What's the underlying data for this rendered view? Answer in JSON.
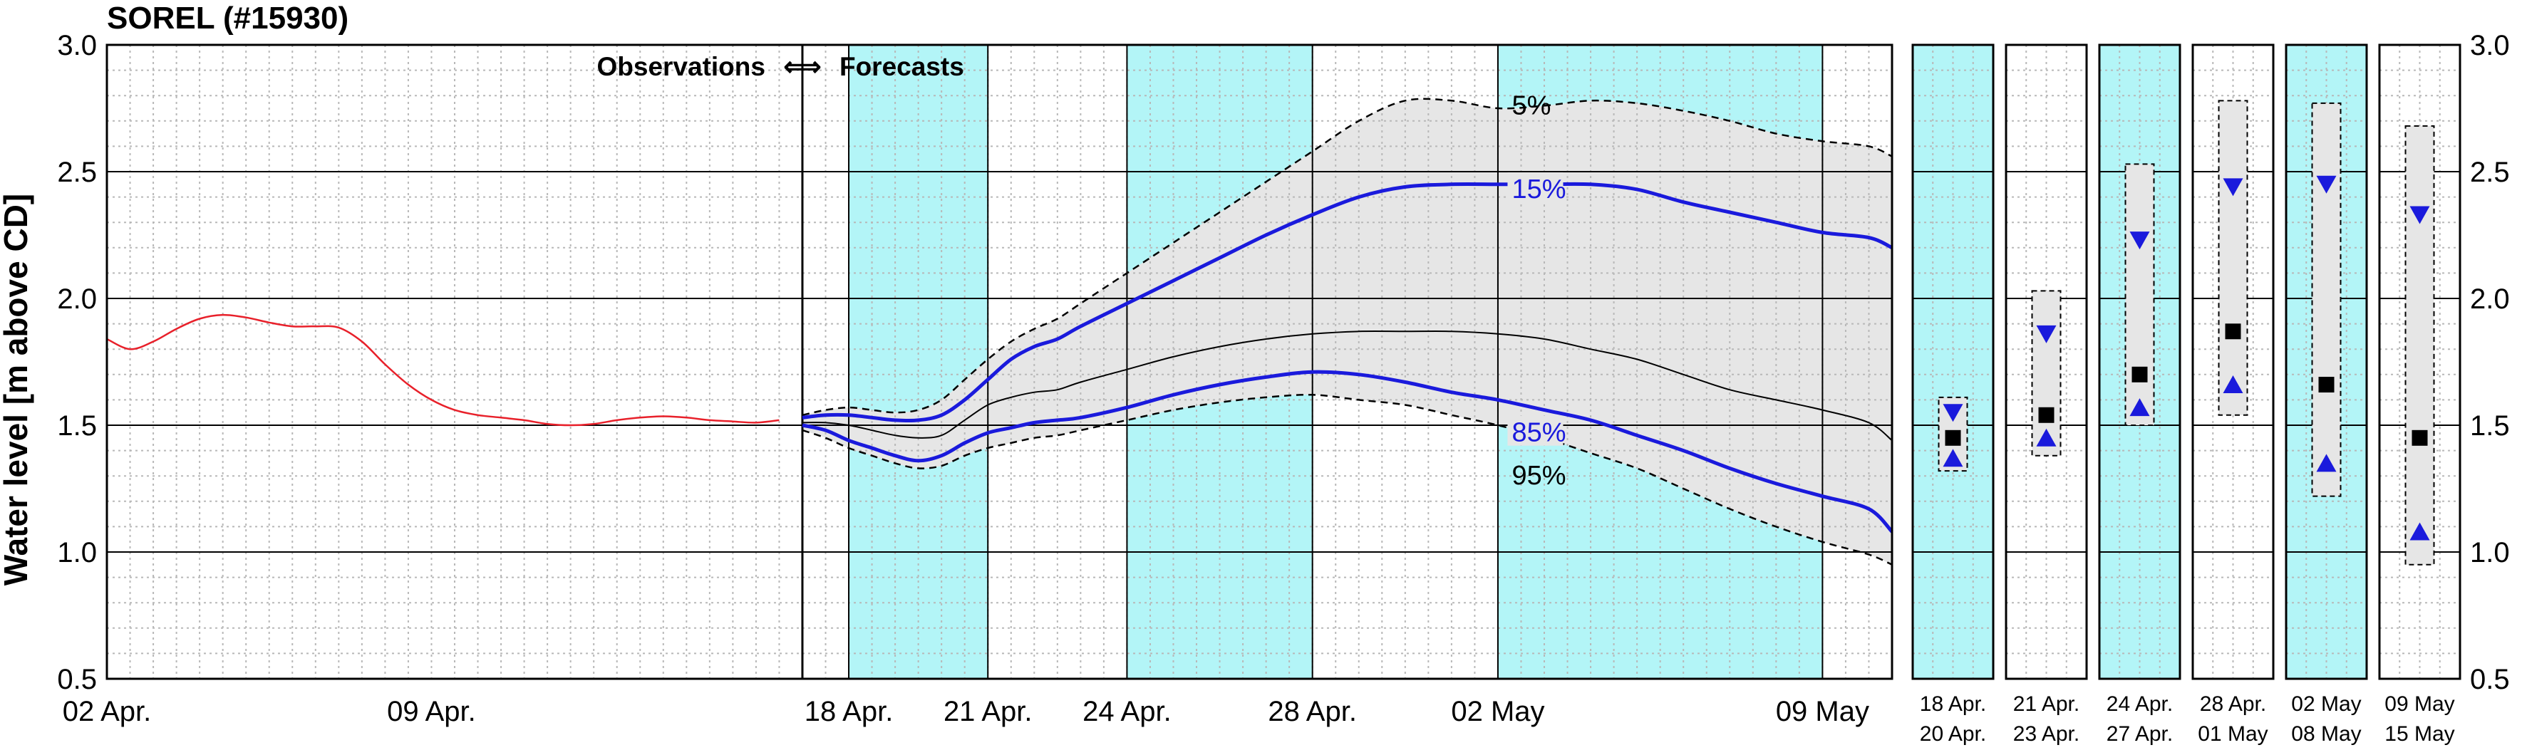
{
  "title": "SOREL (#15930)",
  "ylabel": "Water level [m above CD]",
  "annotation_observations": "Observations",
  "annotation_forecasts": "Forecasts",
  "annotation_arrow": "⟺",
  "colors": {
    "observed": "#e8202a",
    "band15_85": "#1a1adc",
    "median": "#000000",
    "envelope_fill": "#e6e6e6",
    "shade": "#b3f5f7",
    "square": "#000000",
    "triangle": "#1a1adc"
  },
  "chart_data": [
    {
      "type": "line",
      "title": "SOREL (#15930)",
      "ylabel": "Water level [m above CD]",
      "ylim": [
        0.5,
        3.0
      ],
      "yticks": [
        "0.5",
        "1.0",
        "1.5",
        "2.0",
        "2.5",
        "3.0"
      ],
      "grid": true,
      "xlim_days": [
        0,
        38.5
      ],
      "xtick_labels": [
        {
          "day": 0,
          "label": "02 Apr."
        },
        {
          "day": 7,
          "label": "09 Apr."
        },
        {
          "day": 16,
          "label": "18 Apr."
        },
        {
          "day": 19,
          "label": "21 Apr."
        },
        {
          "day": 22,
          "label": "24 Apr."
        },
        {
          "day": 26,
          "label": "28 Apr."
        },
        {
          "day": 30,
          "label": "02 May"
        },
        {
          "day": 37,
          "label": "09 May"
        }
      ],
      "forecast_start_day": 15,
      "shaded_periods_days": [
        [
          16,
          19
        ],
        [
          22,
          26
        ],
        [
          30,
          37
        ]
      ],
      "series": [
        {
          "name": "Observations",
          "x_days": [
            0,
            0.5,
            1,
            1.5,
            2,
            2.5,
            3,
            3.5,
            4,
            4.5,
            5,
            5.5,
            6,
            6.5,
            7,
            7.5,
            8,
            8.5,
            9,
            9.5,
            10,
            10.5,
            11,
            11.5,
            12,
            12.5,
            13,
            13.5,
            14,
            14.5
          ],
          "values": [
            1.84,
            1.8,
            1.83,
            1.88,
            1.92,
            1.935,
            1.925,
            1.905,
            1.89,
            1.89,
            1.885,
            1.83,
            1.74,
            1.66,
            1.6,
            1.56,
            1.54,
            1.53,
            1.52,
            1.505,
            1.5,
            1.505,
            1.52,
            1.53,
            1.535,
            1.53,
            1.52,
            1.515,
            1.51,
            1.52
          ]
        },
        {
          "name": "5%",
          "x_days": [
            15,
            15.5,
            16,
            16.5,
            17,
            17.5,
            18,
            18.5,
            19,
            19.5,
            20,
            20.5,
            21,
            22,
            23,
            24,
            25,
            26,
            27,
            28,
            29,
            30,
            31,
            32,
            33,
            34,
            35,
            36,
            37,
            38,
            38.5
          ],
          "values": [
            1.54,
            1.56,
            1.57,
            1.56,
            1.55,
            1.56,
            1.6,
            1.68,
            1.76,
            1.83,
            1.88,
            1.92,
            1.98,
            2.1,
            2.22,
            2.34,
            2.46,
            2.58,
            2.7,
            2.78,
            2.78,
            2.75,
            2.76,
            2.78,
            2.77,
            2.74,
            2.7,
            2.65,
            2.62,
            2.6,
            2.56
          ]
        },
        {
          "name": "15%",
          "x_days": [
            15,
            15.5,
            16,
            16.5,
            17,
            17.5,
            18,
            18.5,
            19,
            19.5,
            20,
            20.5,
            21,
            22,
            23,
            24,
            25,
            26,
            27,
            28,
            29,
            30,
            31,
            32,
            33,
            34,
            35,
            36,
            37,
            38,
            38.5
          ],
          "values": [
            1.53,
            1.54,
            1.54,
            1.53,
            1.52,
            1.52,
            1.54,
            1.6,
            1.68,
            1.76,
            1.81,
            1.84,
            1.89,
            1.98,
            2.07,
            2.16,
            2.25,
            2.33,
            2.4,
            2.44,
            2.45,
            2.45,
            2.45,
            2.45,
            2.43,
            2.38,
            2.34,
            2.3,
            2.26,
            2.24,
            2.2
          ]
        },
        {
          "name": "median",
          "x_days": [
            15,
            15.5,
            16,
            16.5,
            17,
            17.5,
            18,
            18.5,
            19,
            19.5,
            20,
            20.5,
            21,
            22,
            23,
            24,
            25,
            26,
            27,
            28,
            29,
            30,
            31,
            32,
            33,
            34,
            35,
            36,
            37,
            38,
            38.5
          ],
          "values": [
            1.51,
            1.51,
            1.5,
            1.48,
            1.46,
            1.45,
            1.46,
            1.52,
            1.58,
            1.61,
            1.63,
            1.64,
            1.67,
            1.72,
            1.77,
            1.81,
            1.84,
            1.86,
            1.87,
            1.87,
            1.87,
            1.86,
            1.84,
            1.8,
            1.76,
            1.7,
            1.64,
            1.6,
            1.56,
            1.51,
            1.44
          ]
        },
        {
          "name": "85%",
          "x_days": [
            15,
            15.5,
            16,
            16.5,
            17,
            17.5,
            18,
            18.5,
            19,
            19.5,
            20,
            20.5,
            21,
            22,
            23,
            24,
            25,
            26,
            27,
            28,
            29,
            30,
            31,
            32,
            33,
            34,
            35,
            36,
            37,
            38,
            38.5
          ],
          "values": [
            1.5,
            1.48,
            1.44,
            1.41,
            1.38,
            1.36,
            1.38,
            1.43,
            1.47,
            1.49,
            1.51,
            1.52,
            1.53,
            1.57,
            1.62,
            1.66,
            1.69,
            1.71,
            1.7,
            1.67,
            1.63,
            1.6,
            1.56,
            1.52,
            1.46,
            1.4,
            1.33,
            1.27,
            1.22,
            1.17,
            1.08
          ]
        },
        {
          "name": "95%",
          "x_days": [
            15,
            15.5,
            16,
            16.5,
            17,
            17.5,
            18,
            18.5,
            19,
            19.5,
            20,
            20.5,
            21,
            22,
            23,
            24,
            25,
            26,
            27,
            28,
            29,
            30,
            31,
            32,
            33,
            34,
            35,
            36,
            37,
            38,
            38.5
          ],
          "values": [
            1.48,
            1.45,
            1.41,
            1.38,
            1.35,
            1.33,
            1.34,
            1.38,
            1.41,
            1.43,
            1.45,
            1.46,
            1.48,
            1.52,
            1.56,
            1.59,
            1.61,
            1.62,
            1.6,
            1.58,
            1.54,
            1.5,
            1.45,
            1.39,
            1.33,
            1.25,
            1.17,
            1.1,
            1.04,
            0.99,
            0.95
          ]
        }
      ],
      "percentile_labels": [
        {
          "label": "5%",
          "day": 30.3,
          "value": 2.76
        },
        {
          "label": "15%",
          "day": 30.3,
          "value": 2.43
        },
        {
          "label": "85%",
          "day": 30.3,
          "value": 1.47
        },
        {
          "label": "95%",
          "day": 30.3,
          "value": 1.3
        }
      ]
    },
    {
      "type": "box-summary",
      "ylim": [
        0.5,
        3.0
      ],
      "yticks": [
        "0.5",
        "1.0",
        "1.5",
        "2.0",
        "2.5",
        "3.0"
      ],
      "periods": [
        {
          "label_top": "18 Apr.",
          "label_bottom": "20 Apr.",
          "shaded": true,
          "box_low": 1.32,
          "box_high": 1.61,
          "p15": 1.55,
          "median": 1.45,
          "p85": 1.37
        },
        {
          "label_top": "21 Apr.",
          "label_bottom": "23 Apr.",
          "shaded": false,
          "box_low": 1.38,
          "box_high": 2.03,
          "p15": 1.86,
          "median": 1.54,
          "p85": 1.45
        },
        {
          "label_top": "24 Apr.",
          "label_bottom": "27 Apr.",
          "shaded": true,
          "box_low": 1.5,
          "box_high": 2.53,
          "p15": 2.23,
          "median": 1.7,
          "p85": 1.57
        },
        {
          "label_top": "28 Apr.",
          "label_bottom": "01 May",
          "shaded": false,
          "box_low": 1.54,
          "box_high": 2.78,
          "p15": 2.44,
          "median": 1.87,
          "p85": 1.66
        },
        {
          "label_top": "02 May",
          "label_bottom": "08 May",
          "shaded": true,
          "box_low": 1.22,
          "box_high": 2.77,
          "p15": 2.45,
          "median": 1.66,
          "p85": 1.35
        },
        {
          "label_top": "09 May",
          "label_bottom": "15 May",
          "shaded": false,
          "box_low": 0.95,
          "box_high": 2.68,
          "p15": 2.33,
          "median": 1.45,
          "p85": 1.08
        }
      ]
    }
  ]
}
